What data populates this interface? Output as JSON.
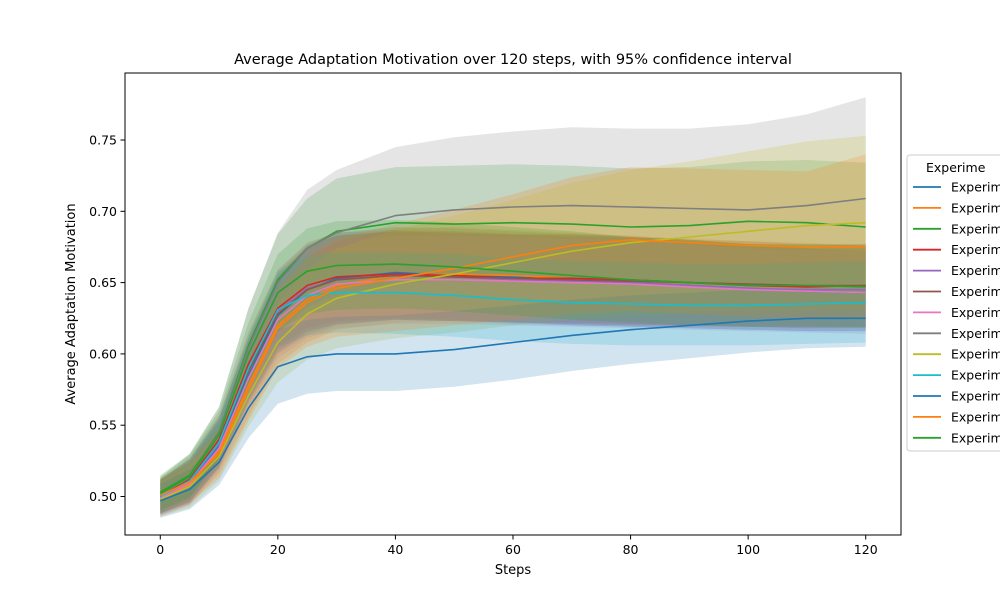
{
  "chart_data": {
    "type": "line",
    "title": "Average Adaptation Motivation over 120 steps, with 95% confidence interval",
    "xlabel": "Steps",
    "ylabel": "Average Adaptation Motivation",
    "xlim": [
      -6,
      126
    ],
    "ylim": [
      0.473,
      0.797
    ],
    "xticks": [
      0,
      20,
      40,
      60,
      80,
      100,
      120
    ],
    "yticks": [
      0.5,
      0.55,
      0.6,
      0.65,
      0.7,
      0.75
    ],
    "grid": false,
    "legend": {
      "title": "Experime",
      "placement": "right-outside",
      "labels": [
        "Experim",
        "Experim",
        "Experim",
        "Experim",
        "Experim",
        "Experim",
        "Experim",
        "Experim",
        "Experim",
        "Experim",
        "Experim",
        "Experim",
        "Experim"
      ]
    },
    "x": [
      0,
      5,
      10,
      15,
      20,
      25,
      30,
      40,
      50,
      60,
      70,
      80,
      90,
      100,
      110,
      120
    ],
    "series": [
      {
        "color": "#1f77b4",
        "values": [
          0.5,
          0.51,
          0.535,
          0.585,
          0.627,
          0.645,
          0.653,
          0.657,
          0.655,
          0.654,
          0.652,
          0.65,
          0.648,
          0.646,
          0.644,
          0.643
        ],
        "lower": [
          0.488,
          0.496,
          0.52,
          0.565,
          0.6,
          0.613,
          0.62,
          0.624,
          0.623,
          0.622,
          0.62,
          0.619,
          0.618,
          0.617,
          0.616,
          0.616
        ],
        "upper": [
          0.512,
          0.524,
          0.552,
          0.606,
          0.653,
          0.676,
          0.685,
          0.689,
          0.688,
          0.686,
          0.684,
          0.682,
          0.679,
          0.677,
          0.674,
          0.672
        ]
      },
      {
        "color": "#ff7f0e",
        "values": [
          0.498,
          0.508,
          0.532,
          0.578,
          0.62,
          0.638,
          0.648,
          0.655,
          0.656,
          0.655,
          0.653,
          0.651,
          0.65,
          0.649,
          0.648,
          0.647
        ],
        "lower": [
          0.486,
          0.494,
          0.516,
          0.556,
          0.593,
          0.608,
          0.617,
          0.622,
          0.623,
          0.622,
          0.621,
          0.62,
          0.619,
          0.619,
          0.618,
          0.618
        ],
        "upper": [
          0.511,
          0.522,
          0.548,
          0.6,
          0.648,
          0.668,
          0.679,
          0.688,
          0.689,
          0.687,
          0.685,
          0.682,
          0.681,
          0.679,
          0.678,
          0.676
        ]
      },
      {
        "color": "#2ca02c",
        "values": [
          0.503,
          0.515,
          0.545,
          0.606,
          0.652,
          0.674,
          0.686,
          0.692,
          0.691,
          0.692,
          0.691,
          0.689,
          0.69,
          0.693,
          0.692,
          0.689
        ],
        "lower": [
          0.491,
          0.5,
          0.527,
          0.58,
          0.62,
          0.639,
          0.648,
          0.652,
          0.651,
          0.651,
          0.65,
          0.648,
          0.648,
          0.65,
          0.649,
          0.646
        ],
        "upper": [
          0.515,
          0.53,
          0.563,
          0.632,
          0.684,
          0.709,
          0.723,
          0.731,
          0.732,
          0.733,
          0.732,
          0.73,
          0.731,
          0.735,
          0.736,
          0.734
        ]
      },
      {
        "color": "#d62728",
        "values": [
          0.5,
          0.512,
          0.54,
          0.593,
          0.632,
          0.648,
          0.654,
          0.656,
          0.655,
          0.653,
          0.653,
          0.652,
          0.65,
          0.648,
          0.647,
          0.648
        ],
        "lower": [
          0.488,
          0.497,
          0.523,
          0.571,
          0.605,
          0.618,
          0.623,
          0.625,
          0.624,
          0.622,
          0.622,
          0.621,
          0.62,
          0.619,
          0.618,
          0.619
        ],
        "upper": [
          0.512,
          0.527,
          0.557,
          0.615,
          0.659,
          0.678,
          0.685,
          0.687,
          0.686,
          0.684,
          0.684,
          0.683,
          0.68,
          0.677,
          0.676,
          0.677
        ]
      },
      {
        "color": "#9467bd",
        "values": [
          0.499,
          0.51,
          0.537,
          0.59,
          0.63,
          0.646,
          0.652,
          0.655,
          0.654,
          0.652,
          0.651,
          0.65,
          0.648,
          0.646,
          0.645,
          0.645
        ],
        "lower": [
          0.487,
          0.495,
          0.52,
          0.568,
          0.603,
          0.616,
          0.621,
          0.624,
          0.623,
          0.621,
          0.62,
          0.619,
          0.618,
          0.617,
          0.616,
          0.616
        ],
        "upper": [
          0.511,
          0.525,
          0.554,
          0.612,
          0.657,
          0.676,
          0.683,
          0.686,
          0.685,
          0.683,
          0.682,
          0.681,
          0.678,
          0.675,
          0.674,
          0.674
        ]
      },
      {
        "color": "#8c564b",
        "values": [
          0.5,
          0.511,
          0.538,
          0.588,
          0.628,
          0.645,
          0.652,
          0.655,
          0.654,
          0.653,
          0.652,
          0.651,
          0.65,
          0.649,
          0.648,
          0.648
        ],
        "lower": [
          0.488,
          0.496,
          0.521,
          0.566,
          0.601,
          0.615,
          0.621,
          0.624,
          0.623,
          0.622,
          0.621,
          0.62,
          0.62,
          0.619,
          0.619,
          0.619
        ],
        "upper": [
          0.512,
          0.526,
          0.555,
          0.61,
          0.655,
          0.675,
          0.683,
          0.686,
          0.685,
          0.684,
          0.683,
          0.682,
          0.68,
          0.679,
          0.677,
          0.677
        ]
      },
      {
        "color": "#e377c2",
        "values": [
          0.499,
          0.509,
          0.534,
          0.583,
          0.624,
          0.641,
          0.649,
          0.652,
          0.652,
          0.651,
          0.65,
          0.649,
          0.647,
          0.645,
          0.644,
          0.643
        ],
        "lower": [
          0.487,
          0.494,
          0.518,
          0.562,
          0.597,
          0.611,
          0.618,
          0.621,
          0.621,
          0.62,
          0.619,
          0.618,
          0.617,
          0.616,
          0.615,
          0.614
        ],
        "upper": [
          0.511,
          0.524,
          0.55,
          0.604,
          0.651,
          0.671,
          0.68,
          0.683,
          0.683,
          0.682,
          0.681,
          0.68,
          0.677,
          0.674,
          0.673,
          0.672
        ]
      },
      {
        "color": "#7f7f7f",
        "values": [
          0.501,
          0.514,
          0.544,
          0.604,
          0.65,
          0.674,
          0.685,
          0.697,
          0.701,
          0.703,
          0.704,
          0.703,
          0.702,
          0.701,
          0.704,
          0.709
        ],
        "lower": [
          0.489,
          0.498,
          0.525,
          0.576,
          0.615,
          0.633,
          0.641,
          0.649,
          0.652,
          0.653,
          0.653,
          0.651,
          0.65,
          0.648,
          0.648,
          0.65
        ],
        "upper": [
          0.513,
          0.53,
          0.563,
          0.632,
          0.685,
          0.715,
          0.729,
          0.745,
          0.752,
          0.756,
          0.759,
          0.758,
          0.758,
          0.761,
          0.768,
          0.78
        ]
      },
      {
        "color": "#bcbd22",
        "values": [
          0.498,
          0.507,
          0.528,
          0.571,
          0.608,
          0.628,
          0.639,
          0.649,
          0.656,
          0.664,
          0.672,
          0.678,
          0.682,
          0.686,
          0.69,
          0.692
        ],
        "lower": [
          0.486,
          0.492,
          0.511,
          0.549,
          0.58,
          0.596,
          0.604,
          0.611,
          0.615,
          0.62,
          0.624,
          0.627,
          0.629,
          0.63,
          0.631,
          0.631
        ],
        "upper": [
          0.51,
          0.522,
          0.545,
          0.593,
          0.636,
          0.66,
          0.674,
          0.687,
          0.697,
          0.708,
          0.72,
          0.729,
          0.735,
          0.742,
          0.749,
          0.753
        ]
      },
      {
        "color": "#17becf",
        "values": [
          0.5,
          0.511,
          0.538,
          0.59,
          0.631,
          0.641,
          0.643,
          0.643,
          0.641,
          0.638,
          0.636,
          0.635,
          0.634,
          0.634,
          0.635,
          0.636
        ],
        "lower": [
          0.488,
          0.496,
          0.521,
          0.568,
          0.604,
          0.613,
          0.615,
          0.614,
          0.612,
          0.609,
          0.607,
          0.606,
          0.606,
          0.606,
          0.607,
          0.608
        ],
        "upper": [
          0.512,
          0.526,
          0.555,
          0.612,
          0.658,
          0.669,
          0.671,
          0.671,
          0.67,
          0.667,
          0.665,
          0.664,
          0.663,
          0.663,
          0.664,
          0.665
        ]
      },
      {
        "color": "#1f77b4",
        "values": [
          0.497,
          0.505,
          0.524,
          0.562,
          0.591,
          0.598,
          0.6,
          0.6,
          0.603,
          0.608,
          0.613,
          0.617,
          0.62,
          0.623,
          0.625,
          0.625
        ],
        "lower": [
          0.485,
          0.491,
          0.508,
          0.541,
          0.565,
          0.572,
          0.574,
          0.574,
          0.577,
          0.582,
          0.588,
          0.593,
          0.597,
          0.601,
          0.604,
          0.605
        ],
        "upper": [
          0.509,
          0.519,
          0.54,
          0.583,
          0.617,
          0.624,
          0.626,
          0.627,
          0.63,
          0.634,
          0.638,
          0.641,
          0.643,
          0.645,
          0.646,
          0.646
        ]
      },
      {
        "color": "#ff7f0e",
        "values": [
          0.501,
          0.51,
          0.53,
          0.575,
          0.618,
          0.636,
          0.646,
          0.653,
          0.66,
          0.668,
          0.676,
          0.68,
          0.678,
          0.676,
          0.675,
          0.675
        ],
        "lower": [
          0.489,
          0.495,
          0.513,
          0.553,
          0.59,
          0.605,
          0.612,
          0.616,
          0.62,
          0.624,
          0.628,
          0.63,
          0.628,
          0.626,
          0.625,
          0.624
        ],
        "upper": [
          0.513,
          0.525,
          0.547,
          0.597,
          0.646,
          0.668,
          0.681,
          0.691,
          0.701,
          0.712,
          0.724,
          0.731,
          0.73,
          0.729,
          0.728,
          0.74
        ]
      },
      {
        "color": "#2ca02c",
        "values": [
          0.502,
          0.514,
          0.543,
          0.6,
          0.643,
          0.658,
          0.662,
          0.663,
          0.661,
          0.658,
          0.655,
          0.652,
          0.65,
          0.648,
          0.648,
          0.647
        ],
        "lower": [
          0.49,
          0.499,
          0.526,
          0.578,
          0.616,
          0.628,
          0.631,
          0.632,
          0.63,
          0.627,
          0.624,
          0.622,
          0.62,
          0.619,
          0.619,
          0.618
        ],
        "upper": [
          0.514,
          0.529,
          0.56,
          0.622,
          0.67,
          0.688,
          0.693,
          0.694,
          0.692,
          0.689,
          0.686,
          0.682,
          0.68,
          0.677,
          0.677,
          0.676
        ]
      }
    ]
  }
}
